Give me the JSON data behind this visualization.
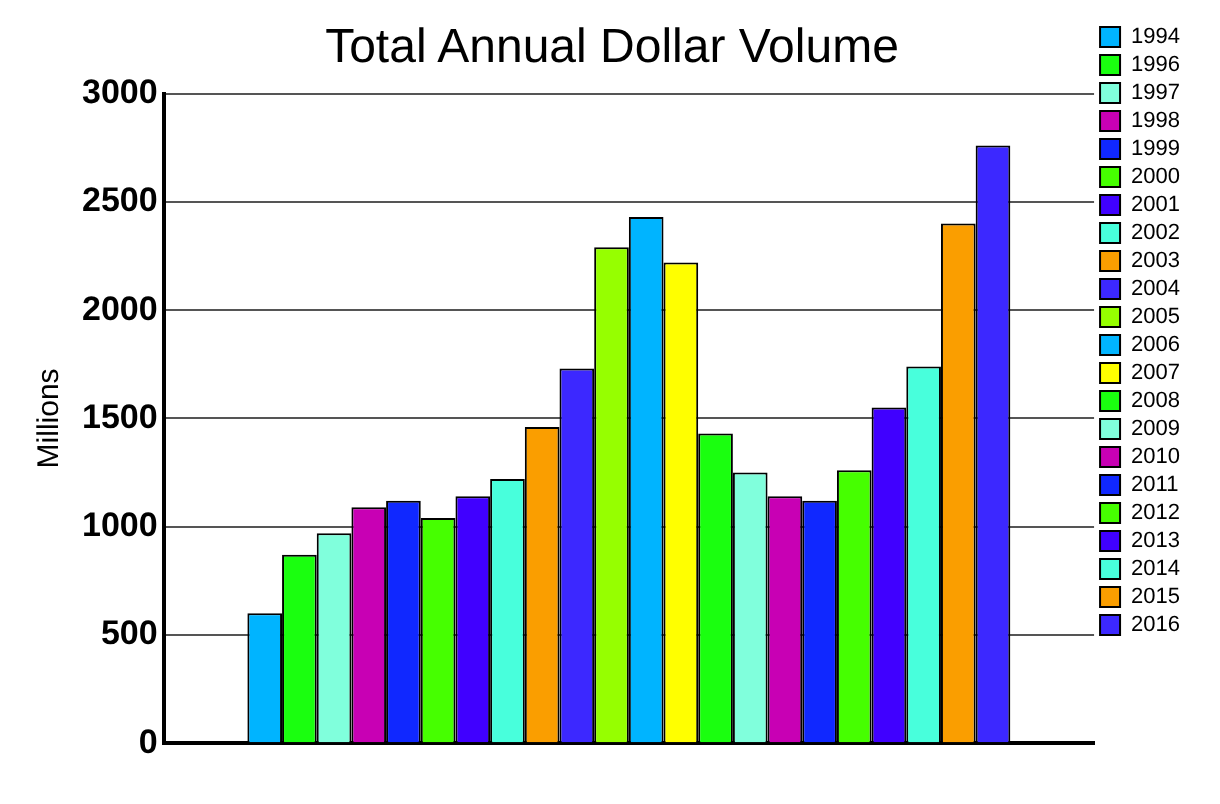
{
  "chart_data": {
    "type": "bar",
    "title": "Total Annual Dollar Volume",
    "ylabel": "Millions",
    "categories": [
      null
    ],
    "ylim": [
      0,
      3000
    ],
    "yticks": [
      0,
      500,
      1000,
      1500,
      2000,
      2500,
      3000
    ],
    "grid": "y",
    "legend": "right",
    "series": [
      {
        "name": "1994",
        "color": "#00b4ff",
        "values": [
          600
        ]
      },
      {
        "name": "1996",
        "color": "#1aff0f",
        "values": [
          870
        ]
      },
      {
        "name": "1997",
        "color": "#80ffdc",
        "values": [
          970
        ]
      },
      {
        "name": "1998",
        "color": "#c800b4",
        "values": [
          1090
        ]
      },
      {
        "name": "1999",
        "color": "#1028ff",
        "values": [
          1120
        ]
      },
      {
        "name": "2000",
        "color": "#46ff00",
        "values": [
          1040
        ]
      },
      {
        "name": "2001",
        "color": "#4000ff",
        "values": [
          1140
        ]
      },
      {
        "name": "2002",
        "color": "#48ffdc",
        "values": [
          1220
        ]
      },
      {
        "name": "2003",
        "color": "#fa9e00",
        "values": [
          1460
        ]
      },
      {
        "name": "2004",
        "color": "#3c28ff",
        "values": [
          1730
        ]
      },
      {
        "name": "2005",
        "color": "#96ff00",
        "values": [
          2290
        ]
      },
      {
        "name": "2006",
        "color": "#00b4ff",
        "values": [
          2430
        ]
      },
      {
        "name": "2007",
        "color": "#ffff00",
        "values": [
          2220
        ]
      },
      {
        "name": "2008",
        "color": "#1aff0f",
        "values": [
          1430
        ]
      },
      {
        "name": "2009",
        "color": "#80ffdc",
        "values": [
          1250
        ]
      },
      {
        "name": "2010",
        "color": "#c800b4",
        "values": [
          1140
        ]
      },
      {
        "name": "2011",
        "color": "#1028ff",
        "values": [
          1120
        ]
      },
      {
        "name": "2012",
        "color": "#46ff00",
        "values": [
          1260
        ]
      },
      {
        "name": "2013",
        "color": "#4000ff",
        "values": [
          1550
        ]
      },
      {
        "name": "2014",
        "color": "#48ffdc",
        "values": [
          1740
        ]
      },
      {
        "name": "2015",
        "color": "#fa9e00",
        "values": [
          2400
        ]
      },
      {
        "name": "2016",
        "color": "#3c28ff",
        "values": [
          2760
        ]
      }
    ]
  }
}
